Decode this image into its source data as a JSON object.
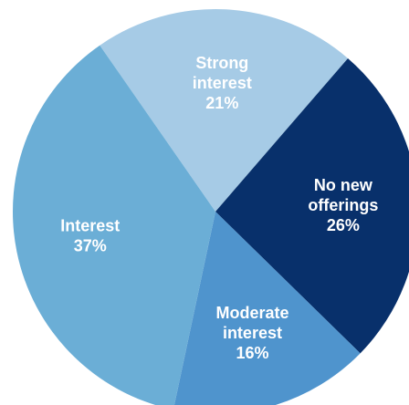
{
  "chart_data": {
    "type": "pie",
    "categories": [
      "Strong interest",
      "No new offerings",
      "Moderate interest",
      "Interest"
    ],
    "values": [
      21,
      26,
      16,
      37
    ],
    "value_labels": [
      "21%",
      "26%",
      "16%",
      "37%"
    ],
    "colors": [
      "#a6cbe6",
      "#08306b",
      "#4f94cd",
      "#6baed6"
    ]
  }
}
